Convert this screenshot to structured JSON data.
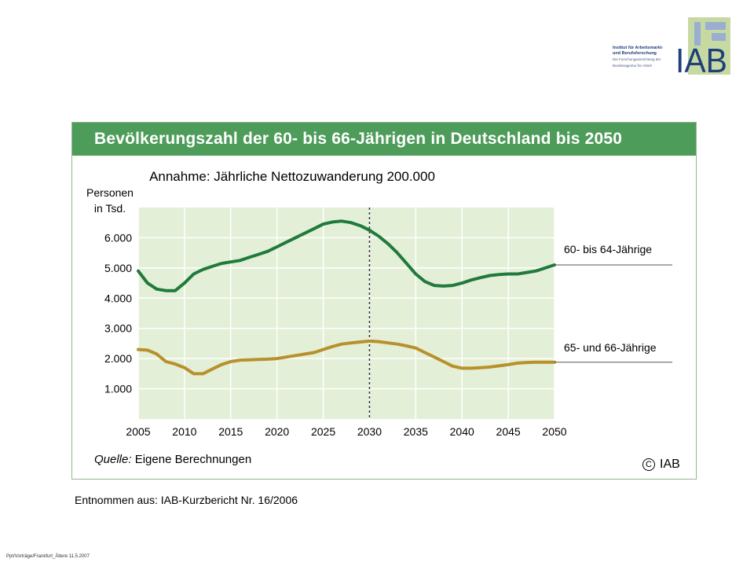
{
  "logo": {
    "line1": "Institut für Arbeitsmarkt-",
    "line2": "und Berufsforschung",
    "line3": "Die Forschungseinrichtung der",
    "line4": "Bundesagentur für Arbeit",
    "mark": "IAB"
  },
  "colors": {
    "header_green": "#4e9c5a",
    "plot_bg": "#e3efd6",
    "series_60_64": "#1f7a3c",
    "series_65_66": "#b8902c"
  },
  "chart_data": {
    "type": "line",
    "title": "Bevölkerungszahl der 60- bis 66-Jährigen in Deutschland bis 2050",
    "subtitle": "Annahme: Jährliche Nettozuwanderung 200.000",
    "ylabel_line1": "Personen",
    "ylabel_line2": "in Tsd.",
    "xlim": [
      2005,
      2050
    ],
    "ylim": [
      0,
      7000
    ],
    "x_ticks": [
      "2005",
      "2010",
      "2015",
      "2020",
      "2025",
      "2030",
      "2035",
      "2040",
      "2045",
      "2050"
    ],
    "y_ticks": [
      {
        "value": 1000,
        "label": "1.000"
      },
      {
        "value": 2000,
        "label": "2.000"
      },
      {
        "value": 3000,
        "label": "3.000"
      },
      {
        "value": 4000,
        "label": "4.000"
      },
      {
        "value": 5000,
        "label": "5.000"
      },
      {
        "value": 6000,
        "label": "6.000"
      }
    ],
    "vertical_marker": 2030,
    "x": [
      2005,
      2006,
      2007,
      2008,
      2009,
      2010,
      2011,
      2012,
      2013,
      2014,
      2015,
      2016,
      2017,
      2018,
      2019,
      2020,
      2021,
      2022,
      2023,
      2024,
      2025,
      2026,
      2027,
      2028,
      2029,
      2030,
      2031,
      2032,
      2033,
      2034,
      2035,
      2036,
      2037,
      2038,
      2039,
      2040,
      2041,
      2042,
      2043,
      2044,
      2045,
      2046,
      2047,
      2048,
      2049,
      2050
    ],
    "series": [
      {
        "name": "60- bis 64-Jährige",
        "values": [
          4900,
          4500,
          4300,
          4250,
          4250,
          4500,
          4800,
          4950,
          5050,
          5150,
          5200,
          5250,
          5350,
          5450,
          5550,
          5700,
          5850,
          6000,
          6150,
          6300,
          6450,
          6520,
          6550,
          6500,
          6400,
          6250,
          6050,
          5800,
          5500,
          5150,
          4800,
          4550,
          4420,
          4400,
          4420,
          4500,
          4600,
          4680,
          4750,
          4780,
          4800,
          4800,
          4850,
          4900,
          5000,
          5100
        ]
      },
      {
        "name": "65- und 66-Jährige",
        "values": [
          2300,
          2280,
          2150,
          1900,
          1820,
          1700,
          1500,
          1500,
          1650,
          1800,
          1900,
          1950,
          1960,
          1970,
          1980,
          2000,
          2050,
          2100,
          2150,
          2200,
          2300,
          2400,
          2480,
          2520,
          2550,
          2580,
          2560,
          2520,
          2480,
          2420,
          2350,
          2200,
          2050,
          1900,
          1750,
          1680,
          1680,
          1700,
          1720,
          1760,
          1800,
          1850,
          1870,
          1880,
          1880,
          1880
        ]
      }
    ],
    "source_label": "Quelle:",
    "source_text": "Eigene Berechnungen",
    "copyright": "IAB"
  },
  "footer": {
    "taken_from": "Entnommen aus: IAB-Kurzbericht Nr. 16/2006",
    "file_path": "Ppt/Vorträge/Frankfurt_Ältere 11.5.2007"
  }
}
